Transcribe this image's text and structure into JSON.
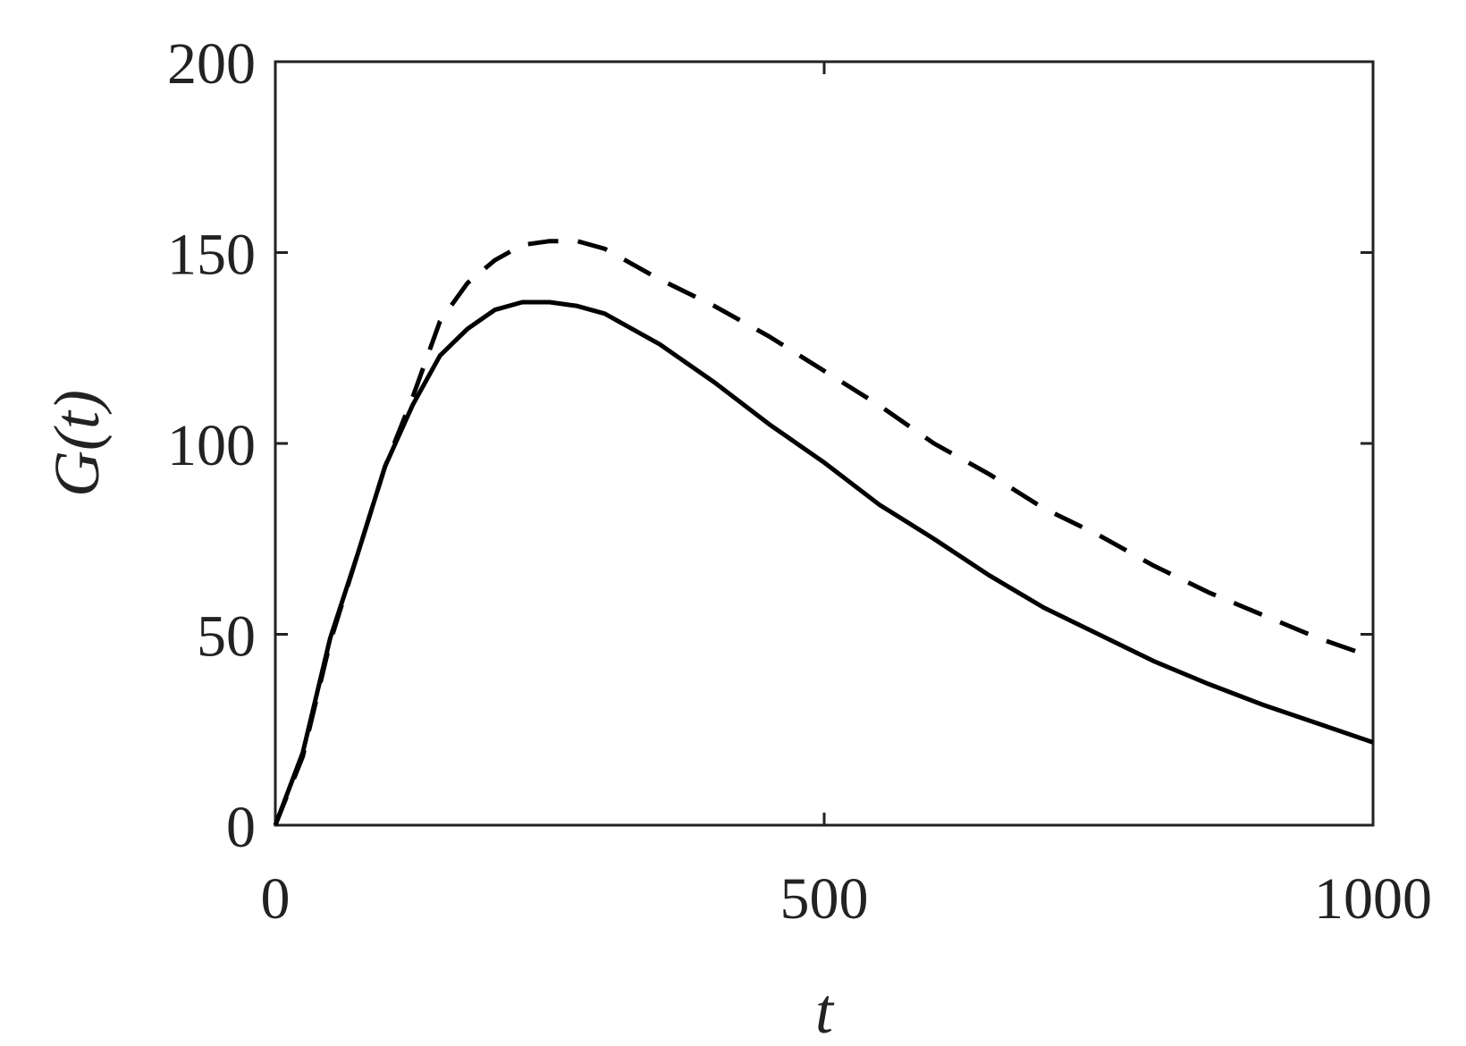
{
  "chart_data": {
    "type": "line",
    "x_label": "t",
    "y_label": "G(t)",
    "x": [
      0,
      25,
      50,
      75,
      100,
      125,
      150,
      175,
      200,
      225,
      250,
      275,
      300,
      350,
      400,
      450,
      500,
      550,
      600,
      650,
      700,
      750,
      800,
      850,
      900,
      950,
      1000
    ],
    "series": [
      {
        "color": "#000000",
        "linestyle": "solid",
        "values": [
          0,
          19,
          49,
          71,
          94,
          110,
          123,
          130,
          135,
          137,
          137,
          136,
          134,
          126,
          116,
          105,
          95,
          84,
          75,
          65.5,
          57,
          50,
          43,
          37,
          31.5,
          26.6,
          21.7
        ]
      },
      {
        "color": "#000000",
        "linestyle": "dashed",
        "values": [
          0,
          18,
          48,
          71,
          94,
          112,
          132,
          142,
          148,
          152,
          153,
          153,
          151,
          143,
          136,
          128,
          119,
          110,
          100,
          92,
          83,
          76,
          68,
          61,
          55,
          49,
          44
        ]
      }
    ],
    "xlim": [
      0,
      1000
    ],
    "xticks": [
      0,
      500,
      1000
    ],
    "ylim": [
      0,
      200
    ],
    "yticks": [
      0,
      50,
      100,
      150,
      200
    ],
    "grid": false
  }
}
